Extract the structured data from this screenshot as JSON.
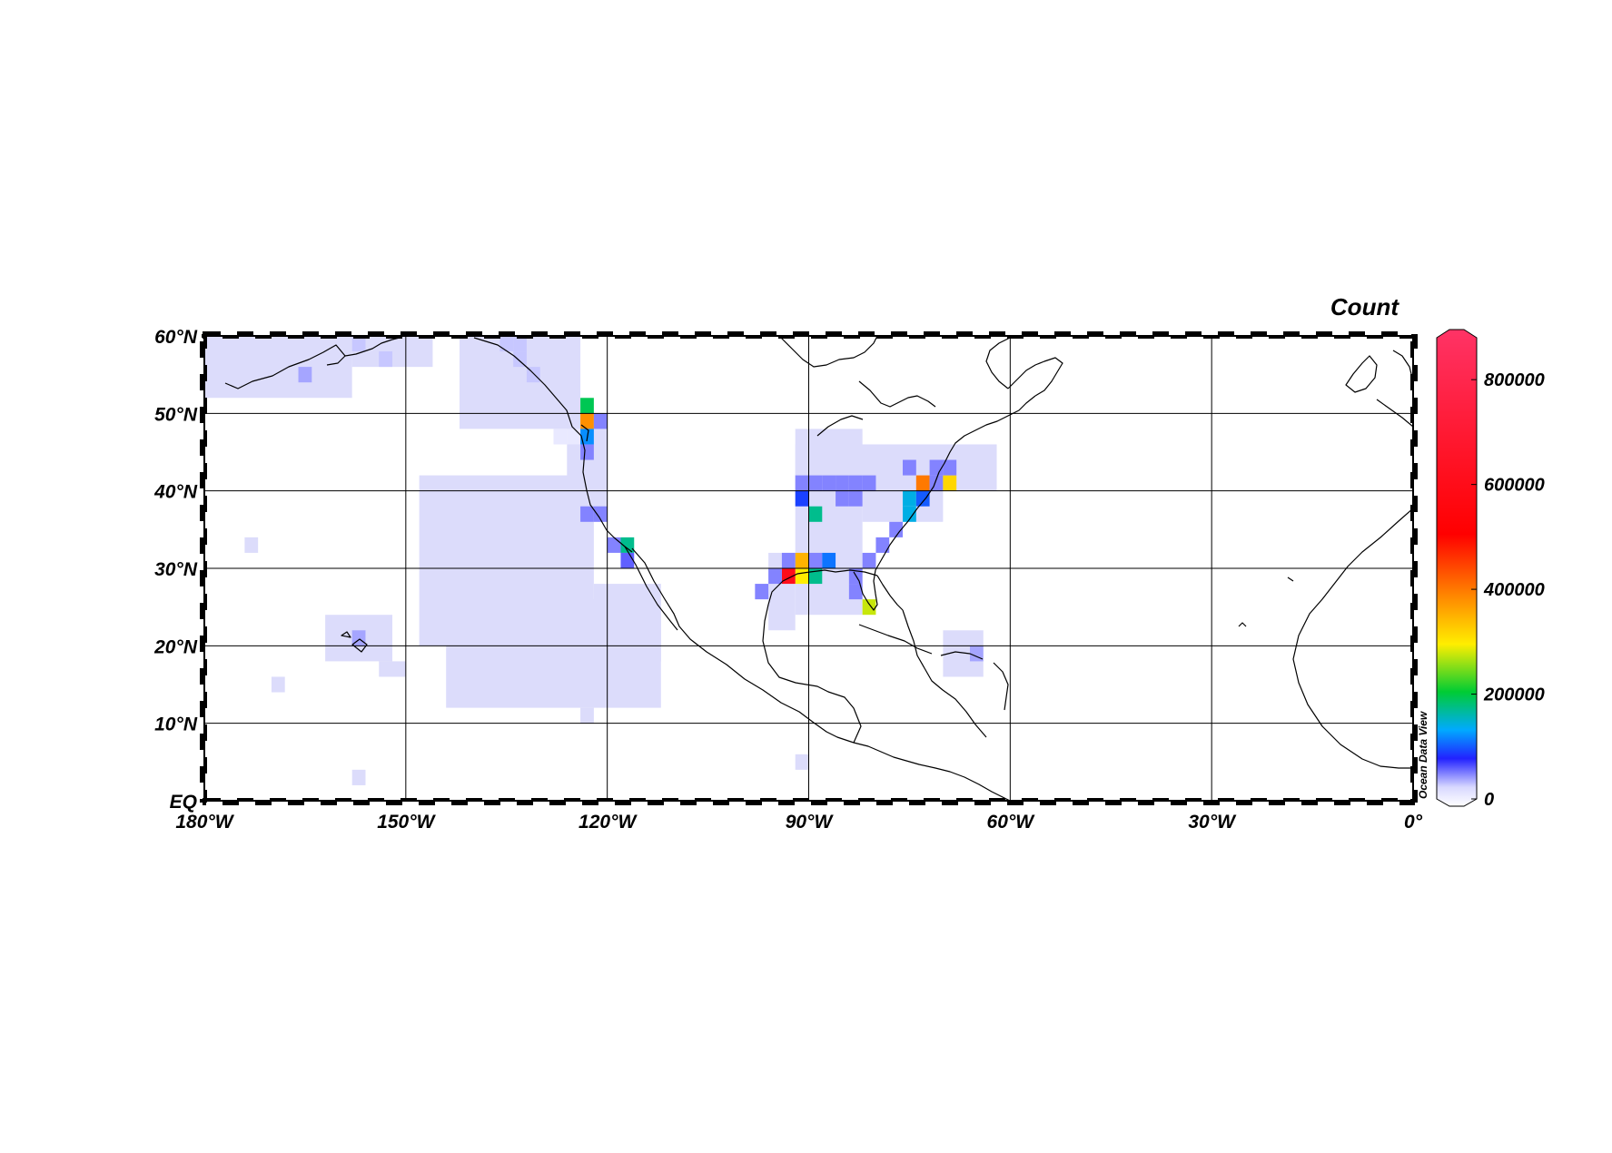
{
  "colorbar": {
    "title": "Count",
    "tick_labels": [
      "800000",
      "600000",
      "400000",
      "200000",
      "0"
    ],
    "tick_values": [
      800000,
      600000,
      400000,
      200000,
      0
    ],
    "range": [
      0,
      880000
    ],
    "colors": [
      "#ffffff",
      "#d8d8ff",
      "#2222ff",
      "#00aaff",
      "#00cc33",
      "#ffee00",
      "#ff8800",
      "#ff0000",
      "#ff3366"
    ]
  },
  "watermark": "Ocean Data View",
  "map": {
    "lon_range": [
      -180,
      0
    ],
    "lat_range": [
      0,
      60
    ],
    "lon_labels": [
      "180°W",
      "150°W",
      "120°W",
      "90°W",
      "60°W",
      "30°W",
      "0°"
    ],
    "lon_ticks": [
      -180,
      -150,
      -120,
      -90,
      -60,
      -30,
      0
    ],
    "lat_labels": [
      "60°N",
      "50°N",
      "40°N",
      "30°N",
      "20°N",
      "10°N",
      "EQ"
    ],
    "lat_ticks": [
      60,
      50,
      40,
      30,
      20,
      10,
      0
    ],
    "grid": true
  },
  "chart_data": {
    "type": "heatmap",
    "title": "",
    "value_label": "Count",
    "cell_size_deg": 2,
    "cells": [
      {
        "lon": -127,
        "lat": 47,
        "value": 20000
      },
      {
        "lon": -125,
        "lat": 47,
        "value": 20000
      },
      {
        "lon": -123,
        "lat": 49,
        "value": 380000
      },
      {
        "lon": -123,
        "lat": 51,
        "value": 200000
      },
      {
        "lon": -123,
        "lat": 47,
        "value": 130000
      },
      {
        "lon": -121,
        "lat": 49,
        "value": 60000
      },
      {
        "lon": -123,
        "lat": 45,
        "value": 60000
      },
      {
        "lon": -123,
        "lat": 37,
        "value": 60000
      },
      {
        "lon": -121,
        "lat": 37,
        "value": 60000
      },
      {
        "lon": -119,
        "lat": 33,
        "value": 60000
      },
      {
        "lon": -117,
        "lat": 33,
        "value": 180000
      },
      {
        "lon": -117,
        "lat": 31,
        "value": 70000
      },
      {
        "lon": -133,
        "lat": 57,
        "value": 40000
      },
      {
        "lon": -135,
        "lat": 59,
        "value": 40000
      },
      {
        "lon": -133,
        "lat": 59,
        "value": 40000
      },
      {
        "lon": -131,
        "lat": 55,
        "value": 40000
      },
      {
        "lon": -165,
        "lat": 55,
        "value": 50000
      },
      {
        "lon": -157,
        "lat": 59,
        "value": 40000
      },
      {
        "lon": -153,
        "lat": 57,
        "value": 40000
      },
      {
        "lon": -157,
        "lat": 21,
        "value": 50000
      },
      {
        "lon": -91,
        "lat": 29,
        "value": 300000
      },
      {
        "lon": -93,
        "lat": 29,
        "value": 600000
      },
      {
        "lon": -95,
        "lat": 29,
        "value": 60000
      },
      {
        "lon": -89,
        "lat": 29,
        "value": 180000
      },
      {
        "lon": -97,
        "lat": 27,
        "value": 60000
      },
      {
        "lon": -91,
        "lat": 31,
        "value": 350000
      },
      {
        "lon": -89,
        "lat": 31,
        "value": 60000
      },
      {
        "lon": -87,
        "lat": 31,
        "value": 120000
      },
      {
        "lon": -93,
        "lat": 31,
        "value": 60000
      },
      {
        "lon": -81,
        "lat": 25,
        "value": 280000
      },
      {
        "lon": -83,
        "lat": 27,
        "value": 60000
      },
      {
        "lon": -83,
        "lat": 29,
        "value": 60000
      },
      {
        "lon": -81,
        "lat": 31,
        "value": 60000
      },
      {
        "lon": -79,
        "lat": 33,
        "value": 60000
      },
      {
        "lon": -77,
        "lat": 35,
        "value": 60000
      },
      {
        "lon": -75,
        "lat": 37,
        "value": 150000
      },
      {
        "lon": -75,
        "lat": 39,
        "value": 150000
      },
      {
        "lon": -73,
        "lat": 39,
        "value": 110000
      },
      {
        "lon": -73,
        "lat": 41,
        "value": 400000
      },
      {
        "lon": -71,
        "lat": 41,
        "value": 60000
      },
      {
        "lon": -69,
        "lat": 41,
        "value": 320000
      },
      {
        "lon": -69,
        "lat": 43,
        "value": 60000
      },
      {
        "lon": -71,
        "lat": 43,
        "value": 60000
      },
      {
        "lon": -75,
        "lat": 43,
        "value": 60000
      },
      {
        "lon": -89,
        "lat": 41,
        "value": 60000
      },
      {
        "lon": -87,
        "lat": 41,
        "value": 60000
      },
      {
        "lon": -91,
        "lat": 41,
        "value": 60000
      },
      {
        "lon": -91,
        "lat": 39,
        "value": 100000
      },
      {
        "lon": -89,
        "lat": 37,
        "value": 180000
      },
      {
        "lon": -85,
        "lat": 39,
        "value": 60000
      },
      {
        "lon": -83,
        "lat": 39,
        "value": 60000
      },
      {
        "lon": -81,
        "lat": 41,
        "value": 60000
      },
      {
        "lon": -83,
        "lat": 41,
        "value": 60000
      },
      {
        "lon": -85,
        "lat": 41,
        "value": 60000
      },
      {
        "lon": -65,
        "lat": 19,
        "value": 50000
      }
    ]
  }
}
